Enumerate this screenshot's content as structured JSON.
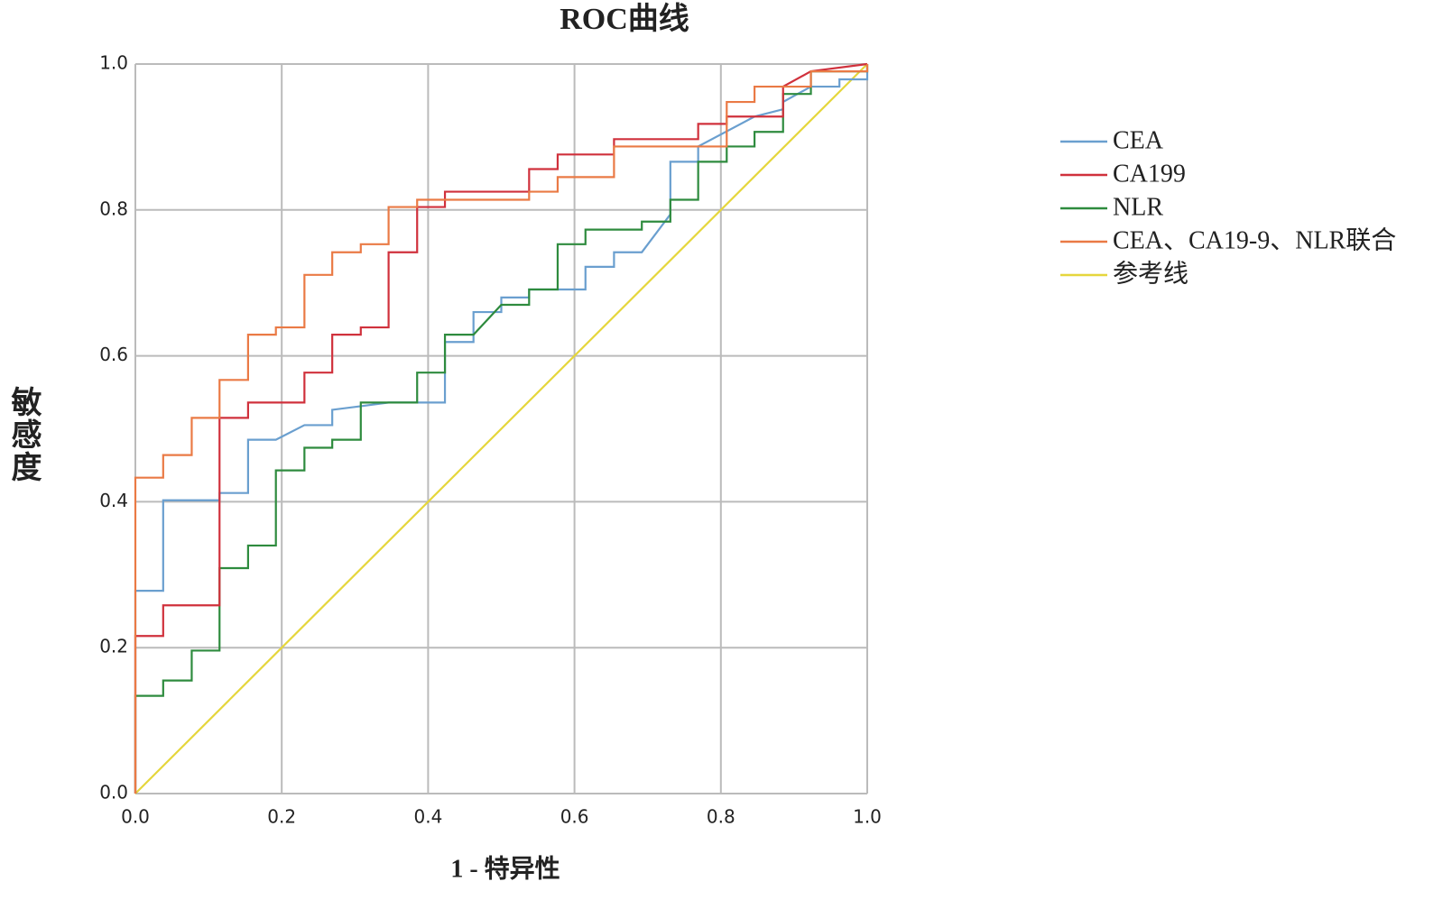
{
  "chart_data": {
    "type": "line",
    "title": "ROC曲线",
    "x_label": "1 - 特异性",
    "y_label": "敏感度",
    "xlim": [
      0,
      1
    ],
    "ylim": [
      0,
      1
    ],
    "xticks": [
      {
        "value": 0,
        "label": "0.0"
      },
      0.2,
      0.4,
      0.6,
      0.8,
      {
        "value": 1,
        "label": "1.0"
      }
    ],
    "yticks": [
      {
        "value": 0,
        "label": "0.0"
      },
      0.2,
      0.4,
      0.6,
      0.8,
      {
        "value": 1,
        "label": "1.0"
      }
    ],
    "grid": true,
    "series": [
      {
        "name": "CEA",
        "color": "#6a9fcf",
        "x": [
          0,
          0,
          0.038,
          0.038,
          0.115,
          0.115,
          0.154,
          0.154,
          0.192,
          0.231,
          0.269,
          0.269,
          0.308,
          0.346,
          0.385,
          0.423,
          0.423,
          0.462,
          0.462,
          0.5,
          0.5,
          0.538,
          0.538,
          0.615,
          0.615,
          0.654,
          0.654,
          0.692,
          0.731,
          0.731,
          0.769,
          0.769,
          0.846,
          0.885,
          0.885,
          0.923,
          0.962,
          0.962,
          1,
          1
        ],
        "values": [
          0,
          0.278,
          0.278,
          0.402,
          0.402,
          0.412,
          0.412,
          0.485,
          0.485,
          0.505,
          0.505,
          0.526,
          0.531,
          0.536,
          0.536,
          0.536,
          0.619,
          0.619,
          0.66,
          0.66,
          0.68,
          0.68,
          0.691,
          0.691,
          0.722,
          0.722,
          0.742,
          0.742,
          0.794,
          0.866,
          0.866,
          0.887,
          0.928,
          0.938,
          0.948,
          0.969,
          0.969,
          0.979,
          0.979,
          1
        ]
      },
      {
        "name": "CA199",
        "color": "#d0313c",
        "x": [
          0,
          0,
          0.038,
          0.038,
          0.115,
          0.115,
          0.154,
          0.154,
          0.231,
          0.231,
          0.269,
          0.269,
          0.308,
          0.308,
          0.346,
          0.346,
          0.385,
          0.385,
          0.423,
          0.423,
          0.538,
          0.538,
          0.577,
          0.577,
          0.654,
          0.654,
          0.769,
          0.769,
          0.808,
          0.808,
          0.885,
          0.885,
          0.923,
          1
        ],
        "values": [
          0,
          0.216,
          0.216,
          0.258,
          0.258,
          0.515,
          0.515,
          0.536,
          0.536,
          0.577,
          0.577,
          0.629,
          0.629,
          0.639,
          0.639,
          0.742,
          0.742,
          0.804,
          0.804,
          0.825,
          0.825,
          0.856,
          0.856,
          0.876,
          0.876,
          0.897,
          0.897,
          0.918,
          0.918,
          0.928,
          0.928,
          0.969,
          0.99,
          1
        ]
      },
      {
        "name": "NLR",
        "color": "#2e8b3e",
        "x": [
          0,
          0,
          0.038,
          0.038,
          0.077,
          0.077,
          0.115,
          0.115,
          0.154,
          0.154,
          0.192,
          0.192,
          0.231,
          0.231,
          0.269,
          0.269,
          0.308,
          0.308,
          0.385,
          0.385,
          0.423,
          0.423,
          0.462,
          0.5,
          0.538,
          0.538,
          0.577,
          0.577,
          0.615,
          0.615,
          0.692,
          0.692,
          0.731,
          0.731,
          0.769,
          0.769,
          0.808,
          0.808,
          0.846,
          0.846,
          0.885,
          0.885,
          0.923,
          0.923,
          1,
          1
        ],
        "values": [
          0,
          0.134,
          0.134,
          0.155,
          0.155,
          0.196,
          0.196,
          0.309,
          0.309,
          0.34,
          0.34,
          0.443,
          0.443,
          0.474,
          0.474,
          0.485,
          0.485,
          0.536,
          0.536,
          0.577,
          0.577,
          0.629,
          0.629,
          0.67,
          0.67,
          0.691,
          0.691,
          0.753,
          0.753,
          0.773,
          0.773,
          0.784,
          0.784,
          0.814,
          0.814,
          0.866,
          0.866,
          0.887,
          0.887,
          0.907,
          0.907,
          0.959,
          0.959,
          0.99,
          0.99,
          1
        ]
      },
      {
        "name": "CEA、CA19-9、NLR联合",
        "color": "#ea7a45",
        "x": [
          0,
          0,
          0.038,
          0.038,
          0.077,
          0.077,
          0.115,
          0.115,
          0.154,
          0.154,
          0.192,
          0.192,
          0.231,
          0.231,
          0.269,
          0.269,
          0.308,
          0.308,
          0.346,
          0.346,
          0.385,
          0.385,
          0.538,
          0.538,
          0.577,
          0.577,
          0.654,
          0.654,
          0.808,
          0.808,
          0.846,
          0.846,
          0.923,
          0.923,
          1,
          1
        ],
        "values": [
          0,
          0.433,
          0.433,
          0.464,
          0.464,
          0.515,
          0.515,
          0.567,
          0.567,
          0.629,
          0.629,
          0.639,
          0.639,
          0.711,
          0.711,
          0.742,
          0.742,
          0.753,
          0.753,
          0.804,
          0.804,
          0.814,
          0.814,
          0.825,
          0.825,
          0.845,
          0.845,
          0.887,
          0.887,
          0.948,
          0.948,
          0.969,
          0.969,
          0.99,
          0.99,
          1
        ]
      },
      {
        "name": "参考线",
        "color": "#e5d63c",
        "x": [
          0,
          1
        ],
        "values": [
          0,
          1
        ]
      }
    ]
  }
}
